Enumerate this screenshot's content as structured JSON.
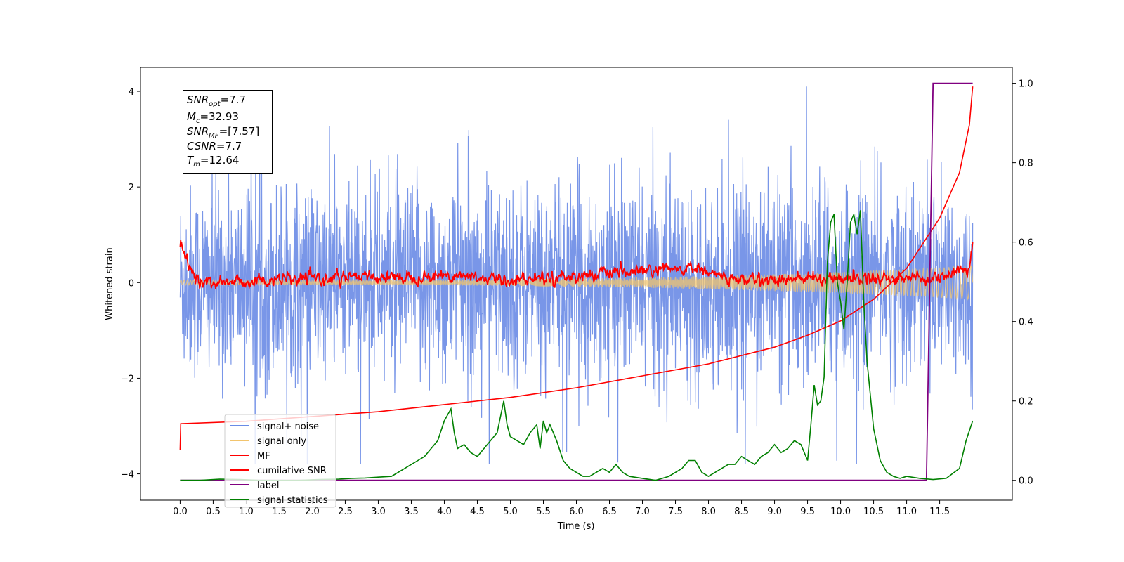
{
  "chart_data": {
    "type": "line",
    "xlabel": "Time (s)",
    "ylabel": "Whitened strain",
    "xlim": [
      -0.6,
      12.6
    ],
    "ylim": [
      -4.55,
      4.5
    ],
    "y2lim": [
      -0.05,
      1.04
    ],
    "x_ticks": [
      "0.0",
      "0.5",
      "1.0",
      "1.5",
      "2.0",
      "2.5",
      "3.0",
      "3.5",
      "4.0",
      "4.5",
      "5.0",
      "5.5",
      "6.0",
      "6.5",
      "7.0",
      "7.5",
      "8.0",
      "8.5",
      "9.0",
      "9.5",
      "10.0",
      "10.5",
      "11.0",
      "11.5"
    ],
    "y_ticks": [
      "4",
      "2",
      "0",
      "−2",
      "−4"
    ],
    "y2_ticks": [
      "1.0",
      "0.8",
      "0.6",
      "0.4",
      "0.2",
      "0.0"
    ],
    "annotation": {
      "snr_opt_sym": "SNR",
      "snr_opt_sub": "opt",
      "snr_opt_val": "=7.7",
      "mc_sym": "M",
      "mc_sub": "c",
      "mc_val": "=32.93",
      "snr_mf_sym": "SNR",
      "snr_mf_sub": "MF",
      "snr_mf_val": "=[7.57]",
      "csnr_sym": "CSNR",
      "csnr_val": "=7.7",
      "tm_sym": "T",
      "tm_sub": "m",
      "tm_val": "=12.64"
    },
    "legend": [
      "signal+ noise",
      "signal only",
      "MF",
      "cumilative SNR",
      "label",
      "signal statistics"
    ],
    "legend_position": "lower-left",
    "series": [
      {
        "name": "signal+ noise",
        "axis": "left",
        "color": "#6a8be6",
        "kind": "noise",
        "t_range": [
          0.0,
          12.0
        ],
        "amplitude_range": [
          -3.8,
          4.1
        ]
      },
      {
        "name": "signal only",
        "axis": "left",
        "color": "#f2c46d",
        "kind": "chirp",
        "t_range": [
          0.0,
          12.0
        ],
        "envelope_start": 0.05,
        "envelope_end": 0.35
      },
      {
        "name": "MF",
        "axis": "left",
        "color": "#ff0000",
        "kind": "noisy-baseline",
        "t_range": [
          0.0,
          12.0
        ],
        "x": [
          0.0,
          0.1,
          0.3,
          1.4,
          2.6,
          4.2,
          4.9,
          7.8,
          8.4,
          10.0,
          11.5,
          11.95,
          12.0
        ],
        "y": [
          0.85,
          0.4,
          0.0,
          0.05,
          0.1,
          0.15,
          0.05,
          0.3,
          0.05,
          0.1,
          0.1,
          0.3,
          0.85
        ]
      },
      {
        "name": "cumilative SNR",
        "axis": "left",
        "color": "#ff0000",
        "x": [
          0.0,
          0.01,
          1.0,
          2.0,
          3.0,
          4.0,
          5.0,
          6.0,
          7.0,
          8.0,
          9.0,
          9.5,
          10.0,
          10.5,
          11.0,
          11.5,
          11.8,
          11.95,
          12.0
        ],
        "y": [
          -3.5,
          -2.95,
          -2.9,
          -2.8,
          -2.7,
          -2.55,
          -2.4,
          -2.2,
          -1.95,
          -1.7,
          -1.35,
          -1.1,
          -0.8,
          -0.35,
          0.3,
          1.35,
          2.3,
          3.3,
          4.1
        ]
      },
      {
        "name": "label",
        "axis": "right",
        "color": "#800080",
        "x": [
          0.0,
          11.3,
          11.4,
          12.0
        ],
        "y": [
          0.0,
          0.0,
          1.0,
          1.0
        ]
      },
      {
        "name": "signal statistics",
        "axis": "right",
        "color": "#008000",
        "x": [
          0.0,
          0.3,
          0.6,
          0.9,
          1.2,
          1.5,
          1.8,
          2.1,
          2.4,
          2.6,
          2.8,
          3.0,
          3.2,
          3.3,
          3.4,
          3.5,
          3.6,
          3.7,
          3.8,
          3.9,
          4.0,
          4.1,
          4.15,
          4.2,
          4.3,
          4.4,
          4.5,
          4.6,
          4.7,
          4.8,
          4.9,
          4.95,
          5.0,
          5.1,
          5.2,
          5.3,
          5.4,
          5.45,
          5.5,
          5.55,
          5.6,
          5.7,
          5.8,
          5.9,
          6.0,
          6.1,
          6.2,
          6.3,
          6.4,
          6.5,
          6.6,
          6.7,
          6.8,
          7.0,
          7.2,
          7.4,
          7.5,
          7.6,
          7.7,
          7.8,
          7.85,
          7.9,
          8.0,
          8.1,
          8.2,
          8.3,
          8.4,
          8.5,
          8.6,
          8.7,
          8.8,
          8.9,
          9.0,
          9.1,
          9.2,
          9.3,
          9.4,
          9.5,
          9.55,
          9.6,
          9.65,
          9.7,
          9.75,
          9.8,
          9.85,
          9.9,
          9.95,
          10.0,
          10.05,
          10.1,
          10.15,
          10.2,
          10.25,
          10.3,
          10.35,
          10.4,
          10.5,
          10.6,
          10.7,
          10.8,
          10.9,
          11.0,
          11.2,
          11.4,
          11.6,
          11.8,
          11.9,
          12.0
        ],
        "y": [
          0.0,
          0.0,
          0.003,
          0.002,
          0.0,
          0.0,
          0.0,
          0.002,
          0.003,
          0.005,
          0.006,
          0.008,
          0.01,
          0.02,
          0.03,
          0.04,
          0.05,
          0.06,
          0.08,
          0.1,
          0.15,
          0.18,
          0.12,
          0.08,
          0.09,
          0.07,
          0.06,
          0.08,
          0.1,
          0.12,
          0.2,
          0.14,
          0.11,
          0.1,
          0.09,
          0.12,
          0.14,
          0.08,
          0.15,
          0.12,
          0.14,
          0.1,
          0.05,
          0.03,
          0.02,
          0.01,
          0.01,
          0.02,
          0.03,
          0.02,
          0.04,
          0.02,
          0.01,
          0.005,
          0.0,
          0.01,
          0.02,
          0.03,
          0.05,
          0.05,
          0.035,
          0.02,
          0.01,
          0.02,
          0.03,
          0.04,
          0.04,
          0.06,
          0.05,
          0.04,
          0.06,
          0.07,
          0.09,
          0.07,
          0.08,
          0.1,
          0.09,
          0.05,
          0.14,
          0.24,
          0.19,
          0.2,
          0.26,
          0.55,
          0.65,
          0.67,
          0.5,
          0.45,
          0.38,
          0.5,
          0.65,
          0.67,
          0.62,
          0.68,
          0.45,
          0.3,
          0.13,
          0.05,
          0.02,
          0.01,
          0.005,
          0.01,
          0.005,
          0.002,
          0.005,
          0.03,
          0.1,
          0.15
        ]
      }
    ]
  },
  "colors": {
    "noise": "#6a8be6",
    "signal": "#f2c46d",
    "mf": "#ff0000",
    "label": "#800080",
    "stats": "#008000"
  }
}
